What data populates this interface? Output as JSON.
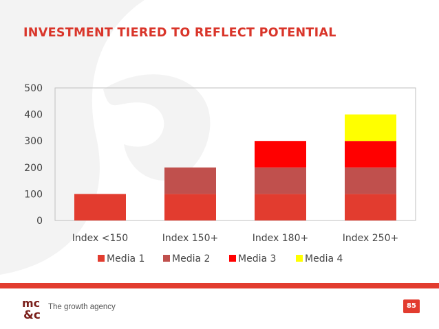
{
  "slide": {
    "title": "INVESTMENT TIERED TO REFLECT POTENTIAL",
    "tagline": "The growth agency",
    "page_number": "85",
    "logo_text": "mc&c"
  },
  "colors": {
    "accent": "#e23c2f",
    "media1": "#e23c2f",
    "media2": "#c0504d",
    "media3": "#ff0000",
    "media4": "#ffff00",
    "grid": "#bfbfbf"
  },
  "chart_data": {
    "type": "bar",
    "stacked": true,
    "categories": [
      "Index <150",
      "Index 150+",
      "Index 180+",
      "Index 250+"
    ],
    "series": [
      {
        "name": "Media 1",
        "values": [
          100,
          100,
          100,
          100
        ]
      },
      {
        "name": "Media 2",
        "values": [
          0,
          100,
          100,
          100
        ]
      },
      {
        "name": "Media 3",
        "values": [
          0,
          0,
          100,
          100
        ]
      },
      {
        "name": "Media 4",
        "values": [
          0,
          0,
          0,
          100
        ]
      }
    ],
    "ylim": [
      0,
      500
    ],
    "yticks": [
      0,
      100,
      200,
      300,
      400,
      500
    ],
    "legend": "bottom",
    "grid": false
  }
}
